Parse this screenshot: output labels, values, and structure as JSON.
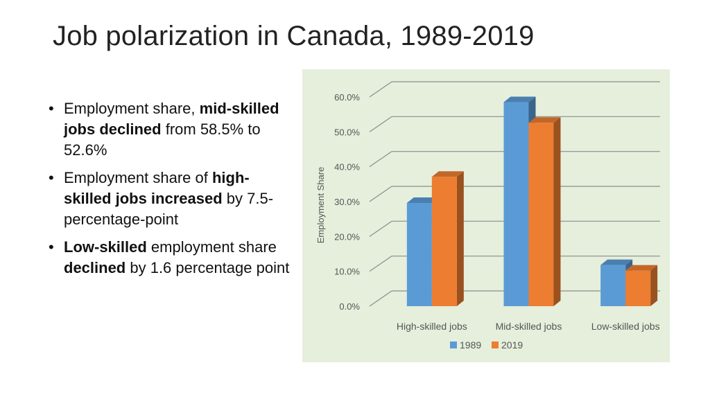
{
  "slide": {
    "title": "Job polarization in Canada, 1989-2019",
    "bullets": [
      {
        "parts": [
          {
            "text": "Employment share, ",
            "bold": false
          },
          {
            "text": "mid-skilled jobs declined",
            "bold": true
          },
          {
            "text": " from 58.5% to 52.6%",
            "bold": false
          }
        ]
      },
      {
        "parts": [
          {
            "text": "Employment share of ",
            "bold": false
          },
          {
            "text": "high-skilled jobs increased",
            "bold": true
          },
          {
            "text": " by 7.5-percentage-point",
            "bold": false
          }
        ]
      },
      {
        "parts": [
          {
            "text": "Low-skilled",
            "bold": true
          },
          {
            "text": " employment share ",
            "bold": false
          },
          {
            "text": "declined",
            "bold": true
          },
          {
            "text": " by 1.6 percentage point",
            "bold": false
          }
        ]
      }
    ]
  },
  "chart_data": {
    "type": "bar",
    "title": "",
    "xlabel": "",
    "ylabel": "Employment Share",
    "ylim": [
      0,
      60
    ],
    "yticks": [
      "0.0%",
      "10.0%",
      "20.0%",
      "30.0%",
      "40.0%",
      "50.0%",
      "60.0%"
    ],
    "categories": [
      "High-skilled jobs",
      "Mid-skilled jobs",
      "Low-skilled jobs"
    ],
    "series": [
      {
        "name": "1989",
        "values": [
          29.6,
          58.5,
          11.8
        ],
        "color": "#5b9bd5"
      },
      {
        "name": "2019",
        "values": [
          37.1,
          52.6,
          10.2
        ],
        "color": "#ed7d31"
      }
    ],
    "grid": true,
    "legend": "bottom-center",
    "style": "3d-clustered-column",
    "background": "#e5efdc"
  }
}
